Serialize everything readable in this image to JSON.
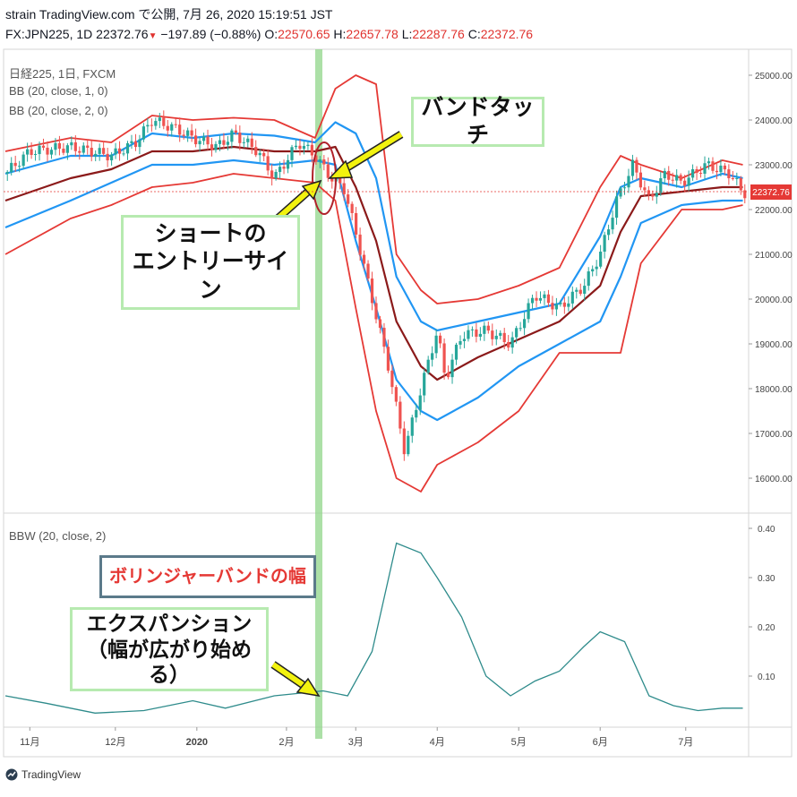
{
  "header": {
    "line1": "strain TradingView.com で公開, 7月 26, 2020 15:19:51 JST",
    "symbol": "FX:JPN225, 1D",
    "last": "22372.76",
    "change": "−197.89 (−0.88%)",
    "o_label": "O:",
    "o_value": "22570.65",
    "h_label": "H:",
    "h_value": "22657.78",
    "l_label": "L:",
    "l_value": "22287.76",
    "c_label": "C:",
    "c_value": "22372.76"
  },
  "indicators": {
    "main": "日経225, 1日, FXCM",
    "bb1": "BB (20, close, 1, 0)",
    "bb2": "BB (20, close, 2, 0)",
    "bbw": "BBW (20, close, 2)"
  },
  "annotations": {
    "band_touch": "バンドタッチ",
    "short_entry_1": "ショートの",
    "short_entry_2": "エントリーサイン",
    "bb_width": "ボリンジャーバンドの幅",
    "expansion_1": "エクスパンション",
    "expansion_2": "（幅が広がり始める）"
  },
  "price_tag": "22372.76",
  "logo_text": "TradingView",
  "colors": {
    "up": "#26a69a",
    "down": "#ef5350",
    "outer_band": "#e53935",
    "inner_band": "#2196f3",
    "mid_band": "#8b1a1a",
    "bbw": "#2e8b8b",
    "highlight": "#90d58a",
    "arrow": "#f2f20f"
  },
  "chart_data": {
    "type": "line",
    "price_axis": {
      "ticks": [
        16000,
        17000,
        18000,
        19000,
        20000,
        21000,
        22000,
        23000,
        24000,
        25000
      ],
      "tick_labels": [
        "16000.00",
        "17000.00",
        "18000.00",
        "19000.00",
        "20000.00",
        "21000.00",
        "22000.00",
        "23000.00",
        "24000.00",
        "25000.00"
      ]
    },
    "bbw_axis": {
      "ticks": [
        0.1,
        0.2,
        0.3,
        0.4
      ],
      "tick_labels": [
        "0.10",
        "0.20",
        "0.30",
        "0.40"
      ]
    },
    "x_labels": [
      "11月",
      "12月",
      "2020",
      "2月",
      "3月",
      "4月",
      "5月",
      "6月",
      "7月"
    ],
    "x_label_pos": [
      0,
      1.05,
      2.05,
      3.15,
      4.0,
      5.0,
      6.0,
      7.0,
      8.05
    ],
    "x_range": [
      -0.3,
      8.8
    ],
    "series": [
      {
        "name": "upper2",
        "x": [
          -0.3,
          0.5,
          1,
          1.5,
          2,
          2.5,
          3,
          3.5,
          3.75,
          4,
          4.25,
          4.5,
          4.8,
          5,
          5.5,
          6,
          6.5,
          7,
          7.25,
          7.5,
          8,
          8.5,
          8.75
        ],
        "values": [
          23300,
          23600,
          23500,
          24100,
          24000,
          24050,
          24000,
          23600,
          24700,
          25000,
          24800,
          21000,
          20200,
          19900,
          20000,
          20300,
          20700,
          22500,
          23200,
          23000,
          22700,
          23100,
          23000
        ]
      },
      {
        "name": "upper1",
        "x": [
          -0.3,
          0.5,
          1,
          1.5,
          2,
          2.5,
          3,
          3.5,
          3.75,
          4,
          4.25,
          4.5,
          4.8,
          5,
          5.5,
          6,
          6.5,
          7,
          7.25,
          7.5,
          8,
          8.5,
          8.75
        ],
        "values": [
          22800,
          23200,
          23200,
          23700,
          23600,
          23700,
          23650,
          23500,
          23950,
          23700,
          22700,
          20500,
          19500,
          19300,
          19500,
          19700,
          19900,
          21400,
          22500,
          22700,
          22500,
          22800,
          22700
        ]
      },
      {
        "name": "middle",
        "x": [
          -0.3,
          0.5,
          1,
          1.5,
          2,
          2.5,
          3,
          3.5,
          3.75,
          4,
          4.25,
          4.5,
          4.8,
          5,
          5.5,
          6,
          6.5,
          7,
          7.25,
          7.5,
          8,
          8.5,
          8.75
        ],
        "values": [
          22200,
          22700,
          22900,
          23300,
          23300,
          23400,
          23300,
          23300,
          23400,
          22500,
          21300,
          19500,
          18500,
          18200,
          18700,
          19100,
          19500,
          20300,
          21500,
          22300,
          22400,
          22500,
          22500
        ]
      },
      {
        "name": "lower1",
        "x": [
          -0.3,
          0.5,
          1,
          1.5,
          2,
          2.5,
          3,
          3.5,
          3.75,
          4,
          4.25,
          4.5,
          4.8,
          5,
          5.5,
          6,
          6.5,
          7,
          7.25,
          7.5,
          8,
          8.5,
          8.75
        ],
        "values": [
          21600,
          22200,
          22600,
          23000,
          23000,
          23100,
          23000,
          23100,
          23000,
          21300,
          19800,
          18200,
          17500,
          17300,
          17800,
          18500,
          19000,
          19500,
          20500,
          21700,
          22100,
          22200,
          22200
        ]
      },
      {
        "name": "lower2",
        "x": [
          -0.3,
          0.5,
          1,
          1.5,
          2,
          2.5,
          3,
          3.5,
          3.75,
          4,
          4.25,
          4.5,
          4.8,
          5,
          5.5,
          6,
          6.5,
          7,
          7.25,
          7.5,
          8,
          8.5,
          8.75
        ],
        "values": [
          21000,
          21800,
          22100,
          22500,
          22600,
          22800,
          22700,
          22600,
          22200,
          19800,
          17500,
          16000,
          15700,
          16300,
          16800,
          17500,
          18800,
          18800,
          18800,
          20800,
          22000,
          22000,
          22100
        ]
      },
      {
        "name": "close",
        "x": [
          -0.3,
          0,
          0.5,
          1,
          1.3,
          1.5,
          1.8,
          2,
          2.3,
          2.5,
          2.8,
          3,
          3.3,
          3.5,
          3.7,
          3.85,
          4,
          4.2,
          4.4,
          4.6,
          4.8,
          5,
          5.1,
          5.3,
          5.6,
          5.9,
          6.2,
          6.5,
          6.8,
          7,
          7.2,
          7.4,
          7.6,
          7.8,
          8,
          8.3,
          8.6,
          8.75
        ],
        "values": [
          22800,
          23300,
          23400,
          23200,
          23500,
          24000,
          23800,
          23600,
          23400,
          23700,
          23300,
          22700,
          23500,
          23200,
          22700,
          22500,
          21500,
          20000,
          18500,
          16600,
          18000,
          19300,
          18200,
          19200,
          19300,
          19000,
          20100,
          19800,
          20300,
          21000,
          22200,
          23000,
          22200,
          22800,
          22600,
          23000,
          22800,
          22372
        ]
      }
    ],
    "bbw": {
      "x": [
        -0.3,
        0.2,
        0.8,
        1.4,
        2.0,
        2.4,
        3.0,
        3.6,
        3.9,
        4.2,
        4.5,
        4.8,
        5.0,
        5.3,
        5.6,
        5.9,
        6.2,
        6.5,
        6.8,
        7.0,
        7.3,
        7.6,
        7.9,
        8.2,
        8.5,
        8.75
      ],
      "values": [
        0.06,
        0.045,
        0.025,
        0.03,
        0.05,
        0.035,
        0.06,
        0.07,
        0.06,
        0.15,
        0.37,
        0.35,
        0.3,
        0.22,
        0.1,
        0.06,
        0.09,
        0.11,
        0.16,
        0.19,
        0.17,
        0.06,
        0.04,
        0.03,
        0.035,
        0.035
      ]
    }
  }
}
